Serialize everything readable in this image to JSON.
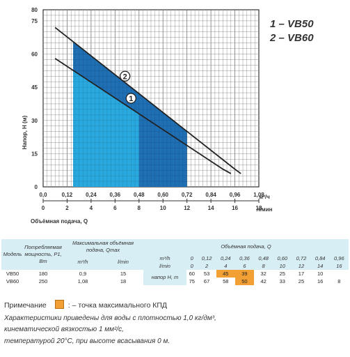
{
  "chart_data": {
    "type": "line",
    "xlabel": "Объёмная подача, Q",
    "ylabel": "Напор, Н (м)",
    "x_unit_top": "м³/ч",
    "x_unit_bottom": "л/мин",
    "xlim": [
      0,
      1.08
    ],
    "ylim": [
      0,
      80
    ],
    "x_ticks": [
      "0,0",
      "0,12",
      "0,24",
      "0,36",
      "0,48",
      "0,60",
      "0,72",
      "0,84",
      "0,96",
      "1,08"
    ],
    "x_ticks_lpm": [
      "0",
      "2",
      "4",
      "6",
      "8",
      "10",
      "12",
      "14",
      "16",
      "18"
    ],
    "y_ticks": [
      "0",
      "15",
      "30",
      "45",
      "60",
      "75",
      "80"
    ],
    "grid": true,
    "series": [
      {
        "name": "1",
        "x": [
          0.06,
          0.9,
          0.94
        ],
        "y": [
          58,
          8,
          6
        ],
        "label_at": [
          0.44,
          40
        ],
        "color": "#222222"
      },
      {
        "name": "2",
        "x": [
          0.06,
          0.96,
          0.99
        ],
        "y": [
          72,
          8,
          6
        ],
        "label_at": [
          0.41,
          50
        ],
        "color": "#222222"
      }
    ],
    "regions": [
      {
        "x": [
          0.15,
          0.72
        ],
        "color": "#1f6fb5",
        "upper": "2"
      },
      {
        "x": [
          0.15,
          0.48
        ],
        "color": "#29a9df",
        "upper": "1"
      }
    ]
  },
  "legend": {
    "line1": "1 – VB50",
    "line2": "2 – VB60"
  },
  "table": {
    "h_model": "Модель",
    "h_power": "Потребляемая мощность, P1, Вт",
    "h_qmax": "Максимальная объёмная подача, Qmax",
    "h_flow": "Объёмная подача, Q",
    "u_m3h": "m³/h",
    "u_lmin": "l/min",
    "u_m3h_row": "m³/h",
    "u_lmin_row": "l/min",
    "q_m3h": [
      "0",
      "0,12",
      "0,24",
      "0,36",
      "0,48",
      "0,60",
      "0,72",
      "0,84",
      "0,96"
    ],
    "q_lmin": [
      "0",
      "2",
      "4",
      "6",
      "8",
      "10",
      "12",
      "14",
      "16"
    ],
    "head_label": "напор H, m",
    "rows": [
      {
        "model": "VB50",
        "power": "180",
        "qmax_m3h": "0,9",
        "qmax_lmin": "15",
        "heads": [
          "60",
          "53",
          "45",
          "39",
          "32",
          "25",
          "17",
          "10",
          ""
        ]
      },
      {
        "model": "VB60",
        "power": "250",
        "qmax_m3h": "1,08",
        "qmax_lmin": "18",
        "heads": [
          "75",
          "67",
          "58",
          "50",
          "42",
          "33",
          "25",
          "16",
          "8"
        ]
      }
    ],
    "highlight": {
      "0": [
        2,
        3
      ],
      "1": [
        3
      ]
    },
    "highlight_color": "#f2a033"
  },
  "note": {
    "label": "Примечание",
    "text": ": – точка максимального КПД",
    "line1": "Характеристики приведены для воды с плотностью 1,0 кг/дм³,",
    "line2": "кинематической вязкостью 1 мм²/с,",
    "line3": "температурой 20°C, при высоте всасывания 0 м."
  }
}
